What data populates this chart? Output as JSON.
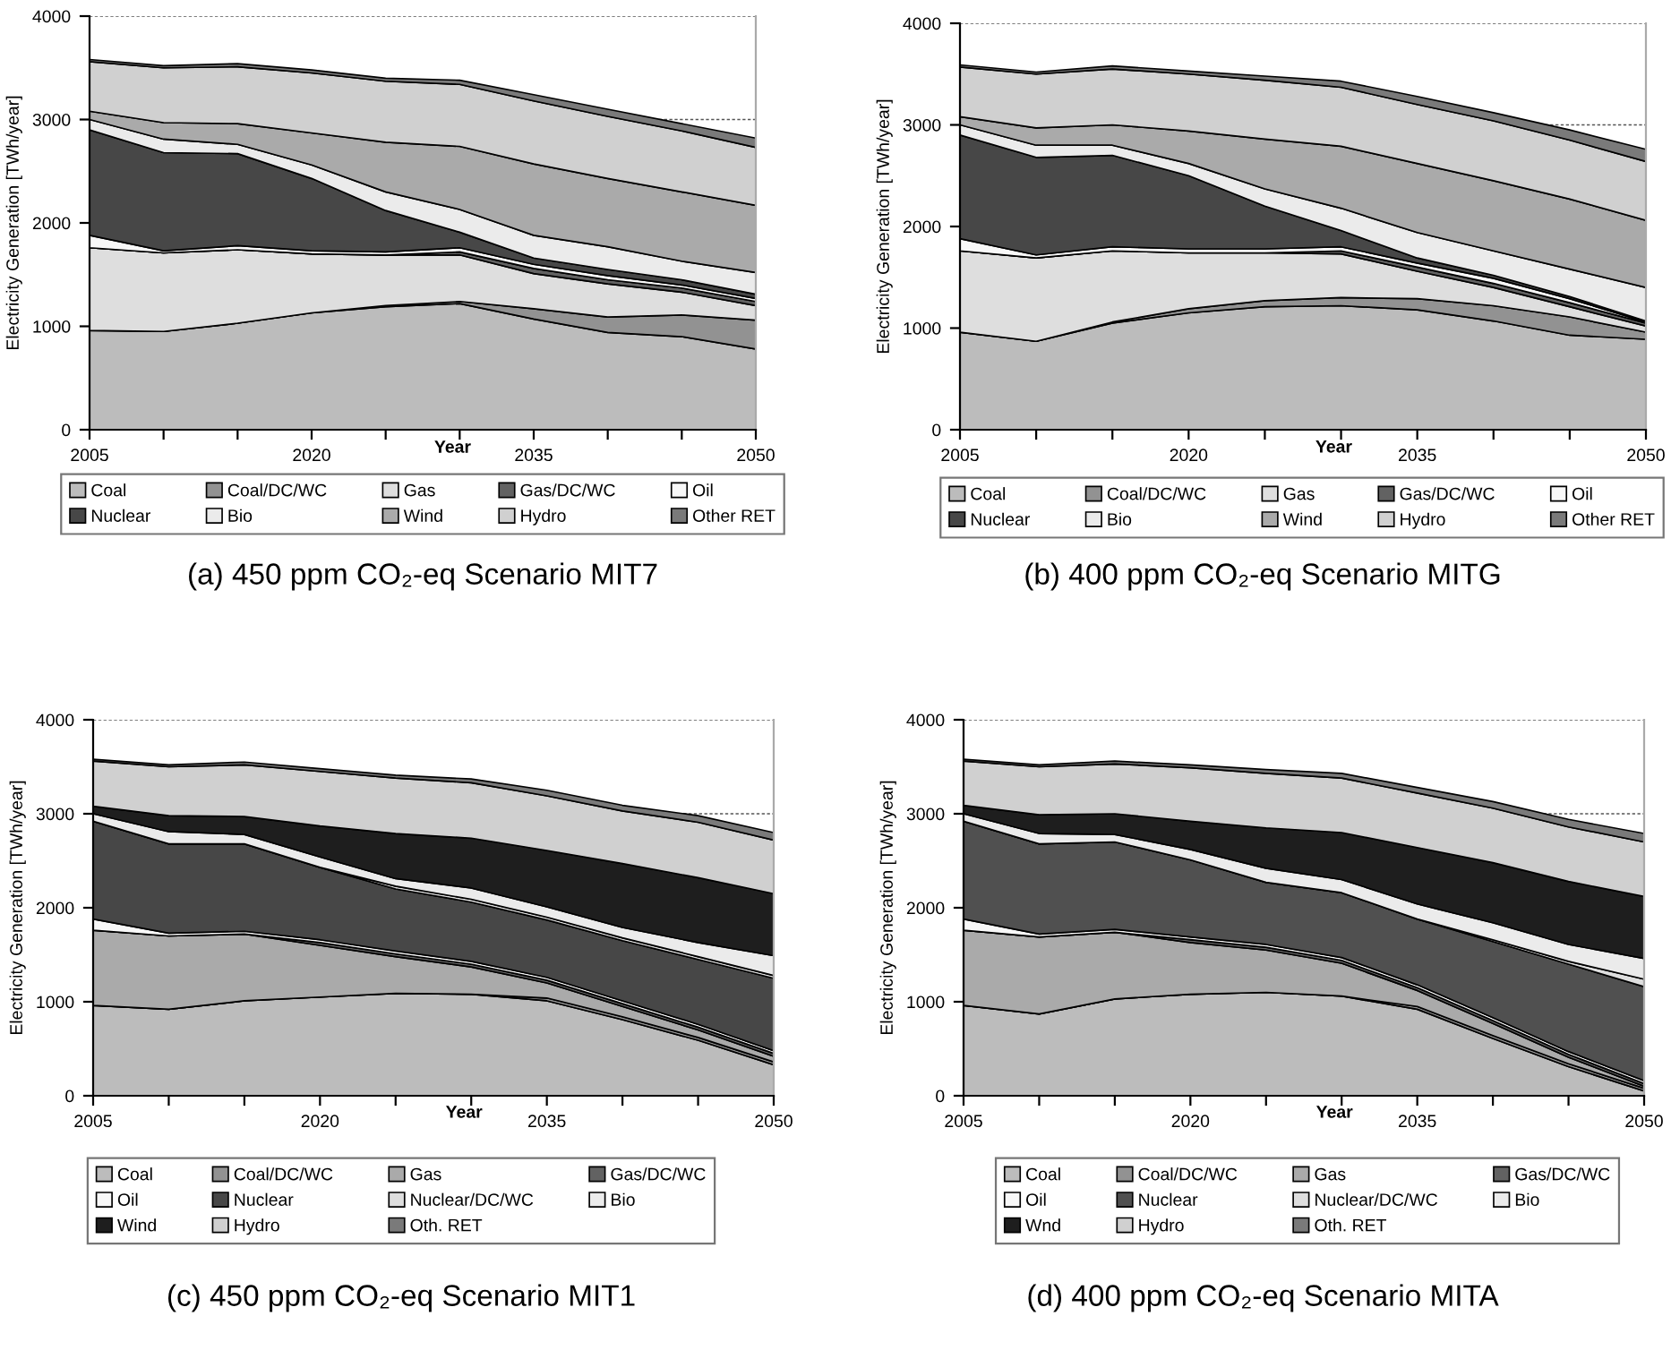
{
  "chart_data": [
    {
      "type": "area",
      "stacked": true,
      "title": "(a) 450 ppm CO₂-eq Scenario MIT7",
      "xlabel": "Year",
      "ylabel": "Electricity Generation [TWh/year]",
      "x": [
        2005,
        2010,
        2015,
        2020,
        2025,
        2030,
        2035,
        2040,
        2045,
        2050
      ],
      "xlim": [
        2005,
        2050
      ],
      "ylim": [
        0,
        4000
      ],
      "xticks": [
        2005,
        {
          "value": 2010,
          "label": null
        },
        {
          "value": 2015,
          "label": null
        },
        2020,
        {
          "value": 2025,
          "label": null
        },
        {
          "value": 2030,
          "label": null
        },
        2035,
        {
          "value": 2040,
          "label": null
        },
        {
          "value": 2045,
          "label": null
        },
        2050
      ],
      "yticks": [
        0,
        1000,
        2000,
        3000,
        4000
      ],
      "grid": "y",
      "legend": "bottom",
      "series": [
        {
          "name": "Coal",
          "color": "#bcbcbc",
          "values": [
            960,
            950,
            1030,
            1130,
            1190,
            1220,
            1070,
            940,
            900,
            780
          ]
        },
        {
          "name": "Coal/DC/WC",
          "color": "#929292",
          "values": [
            0,
            0,
            0,
            0,
            10,
            20,
            100,
            150,
            210,
            280
          ]
        },
        {
          "name": "Gas",
          "color": "#dedede",
          "values": [
            800,
            760,
            710,
            570,
            490,
            450,
            340,
            320,
            220,
            140
          ]
        },
        {
          "name": "Gas/DC/WC",
          "color": "#626262",
          "values": [
            0,
            0,
            0,
            0,
            0,
            30,
            50,
            40,
            40,
            40
          ]
        },
        {
          "name": "Oil",
          "color": "#f8f8f8",
          "values": [
            120,
            20,
            40,
            30,
            30,
            40,
            40,
            40,
            30,
            30
          ]
        },
        {
          "name": "Nuclear",
          "color": "#474747",
          "values": [
            1020,
            950,
            890,
            700,
            400,
            150,
            60,
            60,
            50,
            40
          ]
        },
        {
          "name": "Bio",
          "color": "#ebebeb",
          "values": [
            100,
            130,
            90,
            130,
            180,
            220,
            220,
            220,
            180,
            210
          ]
        },
        {
          "name": "Wind",
          "color": "#aaaaaa",
          "values": [
            80,
            160,
            200,
            310,
            480,
            610,
            690,
            660,
            670,
            650
          ]
        },
        {
          "name": "Hydro",
          "color": "#d0d0d0",
          "values": [
            480,
            530,
            550,
            580,
            590,
            600,
            610,
            600,
            590,
            560
          ]
        },
        {
          "name": "Other RET",
          "color": "#7a7a7a",
          "values": [
            20,
            20,
            30,
            30,
            30,
            40,
            60,
            70,
            70,
            90
          ]
        }
      ]
    },
    {
      "type": "area",
      "stacked": true,
      "title": "(b) 400 ppm CO₂-eq Scenario MITG",
      "xlabel": "Year",
      "ylabel": "Electricity Generation [TWh/year]",
      "x": [
        2005,
        2010,
        2015,
        2020,
        2025,
        2030,
        2035,
        2040,
        2045,
        2050
      ],
      "xlim": [
        2005,
        2050
      ],
      "ylim": [
        0,
        4000
      ],
      "xticks": [
        2005,
        {
          "value": 2010,
          "label": null
        },
        {
          "value": 2015,
          "label": null
        },
        2020,
        {
          "value": 2025,
          "label": null
        },
        {
          "value": 2030,
          "label": null
        },
        2035,
        {
          "value": 2040,
          "label": null
        },
        {
          "value": 2045,
          "label": null
        },
        2050
      ],
      "yticks": [
        0,
        1000,
        2000,
        3000,
        4000
      ],
      "grid": "y",
      "legend": "bottom",
      "series": [
        {
          "name": "Coal",
          "color": "#bcbcbc",
          "values": [
            960,
            870,
            1050,
            1150,
            1210,
            1220,
            1180,
            1070,
            930,
            890
          ]
        },
        {
          "name": "Coal/DC/WC",
          "color": "#929292",
          "values": [
            0,
            0,
            10,
            40,
            60,
            80,
            110,
            150,
            180,
            70
          ]
        },
        {
          "name": "Gas",
          "color": "#dedede",
          "values": [
            800,
            820,
            700,
            550,
            470,
            430,
            270,
            180,
            100,
            60
          ]
        },
        {
          "name": "Gas/DC/WC",
          "color": "#626262",
          "values": [
            0,
            0,
            0,
            0,
            0,
            30,
            40,
            40,
            40,
            30
          ]
        },
        {
          "name": "Oil",
          "color": "#f8f8f8",
          "values": [
            120,
            30,
            40,
            40,
            40,
            40,
            40,
            50,
            40,
            10
          ]
        },
        {
          "name": "Nuclear",
          "color": "#474747",
          "values": [
            1020,
            960,
            900,
            720,
            420,
            160,
            50,
            30,
            20,
            10
          ]
        },
        {
          "name": "Bio",
          "color": "#ebebeb",
          "values": [
            100,
            120,
            100,
            120,
            170,
            220,
            250,
            240,
            270,
            330
          ]
        },
        {
          "name": "Wind",
          "color": "#aaaaaa",
          "values": [
            80,
            170,
            200,
            320,
            490,
            610,
            680,
            690,
            690,
            660
          ]
        },
        {
          "name": "Hydro",
          "color": "#d0d0d0",
          "values": [
            490,
            530,
            550,
            560,
            580,
            580,
            580,
            590,
            580,
            580
          ]
        },
        {
          "name": "Other RET",
          "color": "#7a7a7a",
          "values": [
            20,
            20,
            30,
            30,
            40,
            60,
            80,
            80,
            100,
            120
          ]
        }
      ]
    },
    {
      "type": "area",
      "stacked": true,
      "title": "(c) 450 ppm CO₂-eq Scenario MIT1",
      "xlabel": "Year",
      "ylabel": "Electricity Generation [TWh/year]",
      "x": [
        2005,
        2010,
        2015,
        2020,
        2025,
        2030,
        2035,
        2040,
        2045,
        2050
      ],
      "xlim": [
        2005,
        2050
      ],
      "ylim": [
        0,
        4000
      ],
      "xticks": [
        2005,
        {
          "value": 2010,
          "label": null
        },
        {
          "value": 2015,
          "label": null
        },
        2020,
        {
          "value": 2025,
          "label": null
        },
        {
          "value": 2030,
          "label": null
        },
        2035,
        {
          "value": 2040,
          "label": null
        },
        {
          "value": 2045,
          "label": null
        },
        2050
      ],
      "yticks": [
        0,
        1000,
        2000,
        3000,
        4000
      ],
      "grid": "y",
      "legend": "bottom",
      "series": [
        {
          "name": "Coal",
          "color": "#bcbcbc",
          "values": [
            960,
            920,
            1010,
            1050,
            1090,
            1080,
            1010,
            810,
            590,
            330
          ]
        },
        {
          "name": "Coal/DC/WC",
          "color": "#929292",
          "values": [
            0,
            0,
            0,
            0,
            0,
            0,
            30,
            30,
            30,
            30
          ]
        },
        {
          "name": "Gas",
          "color": "#aaaaaa",
          "values": [
            800,
            780,
            710,
            550,
            390,
            290,
            160,
            110,
            80,
            60
          ]
        },
        {
          "name": "Gas/DC/WC",
          "color": "#626262",
          "values": [
            0,
            0,
            0,
            30,
            30,
            30,
            30,
            30,
            30,
            30
          ]
        },
        {
          "name": "Oil",
          "color": "#f8f8f8",
          "values": [
            120,
            30,
            30,
            30,
            30,
            30,
            30,
            30,
            30,
            30
          ]
        },
        {
          "name": "Nuclear",
          "color": "#474747",
          "values": [
            1040,
            950,
            930,
            770,
            660,
            630,
            610,
            640,
            690,
            770
          ]
        },
        {
          "name": "Nuclear/DC/WC",
          "color": "#dedede",
          "values": [
            0,
            0,
            0,
            0,
            30,
            30,
            30,
            30,
            30,
            30
          ]
        },
        {
          "name": "Bio",
          "color": "#ebebeb",
          "values": [
            80,
            130,
            100,
            110,
            80,
            120,
            110,
            110,
            150,
            210
          ]
        },
        {
          "name": "Wind",
          "color": "#1e1e1e",
          "values": [
            80,
            170,
            190,
            330,
            480,
            530,
            600,
            680,
            690,
            660
          ]
        },
        {
          "name": "Hydro",
          "color": "#d0d0d0",
          "values": [
            480,
            520,
            550,
            580,
            590,
            590,
            580,
            560,
            590,
            570
          ]
        },
        {
          "name": "Oth. RET",
          "color": "#7a7a7a",
          "values": [
            20,
            20,
            30,
            30,
            30,
            40,
            60,
            60,
            70,
            80
          ]
        }
      ]
    },
    {
      "type": "area",
      "stacked": true,
      "title": "(d) 400 ppm CO₂-eq Scenario MITA",
      "xlabel": "Year",
      "ylabel": "Electricity Generation [TWh/year]",
      "x": [
        2005,
        2010,
        2015,
        2020,
        2025,
        2030,
        2035,
        2040,
        2045,
        2050
      ],
      "xlim": [
        2005,
        2050
      ],
      "ylim": [
        0,
        4000
      ],
      "xticks": [
        2005,
        {
          "value": 2010,
          "label": null
        },
        {
          "value": 2015,
          "label": null
        },
        2020,
        {
          "value": 2025,
          "label": null
        },
        {
          "value": 2030,
          "label": null
        },
        2035,
        {
          "value": 2040,
          "label": null
        },
        {
          "value": 2045,
          "label": null
        },
        2050
      ],
      "yticks": [
        0,
        1000,
        2000,
        3000,
        4000
      ],
      "grid": "y",
      "legend": "bottom",
      "series": [
        {
          "name": "Coal",
          "color": "#bcbcbc",
          "values": [
            960,
            870,
            1030,
            1080,
            1100,
            1060,
            920,
            610,
            310,
            50
          ]
        },
        {
          "name": "Coal/DC/WC",
          "color": "#929292",
          "values": [
            0,
            0,
            0,
            0,
            0,
            0,
            30,
            30,
            30,
            30
          ]
        },
        {
          "name": "Gas",
          "color": "#aaaaaa",
          "values": [
            800,
            820,
            710,
            550,
            450,
            350,
            170,
            130,
            70,
            20
          ]
        },
        {
          "name": "Gas/DC/WC",
          "color": "#626262",
          "values": [
            0,
            0,
            0,
            30,
            30,
            30,
            30,
            30,
            30,
            30
          ]
        },
        {
          "name": "Oil",
          "color": "#f8f8f8",
          "values": [
            120,
            30,
            30,
            30,
            30,
            30,
            30,
            30,
            30,
            30
          ]
        },
        {
          "name": "Nuclear",
          "color": "#505050",
          "values": [
            1040,
            960,
            930,
            820,
            660,
            690,
            700,
            810,
            930,
            1000
          ]
        },
        {
          "name": "Nuclear/DC/WC",
          "color": "#dedede",
          "values": [
            0,
            0,
            0,
            0,
            0,
            0,
            0,
            20,
            30,
            80
          ]
        },
        {
          "name": "Bio",
          "color": "#ebebeb",
          "values": [
            80,
            110,
            80,
            110,
            150,
            140,
            160,
            180,
            180,
            220
          ]
        },
        {
          "name": "Wnd",
          "color": "#1e1e1e",
          "values": [
            90,
            200,
            220,
            300,
            430,
            500,
            600,
            640,
            670,
            660
          ]
        },
        {
          "name": "Hydro",
          "color": "#d0d0d0",
          "values": [
            470,
            510,
            530,
            570,
            580,
            580,
            580,
            580,
            580,
            580
          ]
        },
        {
          "name": "Oth. RET",
          "color": "#7a7a7a",
          "values": [
            20,
            20,
            30,
            30,
            40,
            50,
            60,
            70,
            80,
            90
          ]
        }
      ]
    }
  ]
}
